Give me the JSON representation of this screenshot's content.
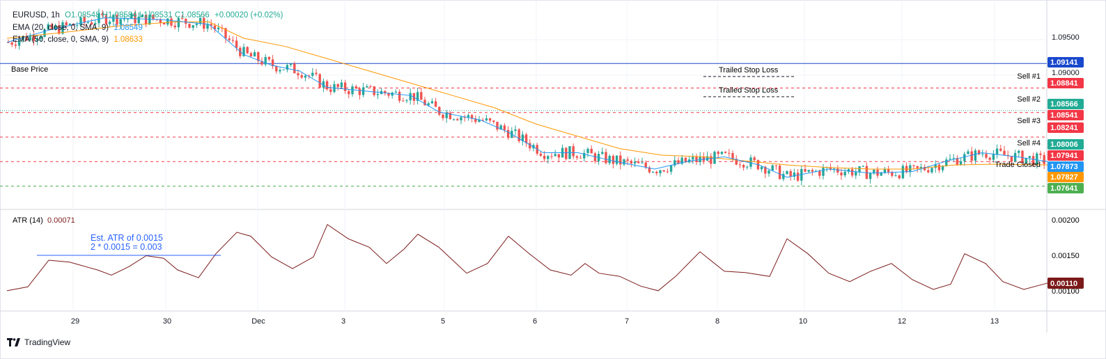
{
  "legend": {
    "symbol": "EURUSD, 1h",
    "ohlc": "O1.08548 H1.08584 L1.08531 C1.08566",
    "change": "+0.00020 (+0.02%)",
    "ema20_label": "EMA (20, close, 0, SMA, 9)",
    "ema20_value": "1.08549",
    "ema50_label": "EMA (50, close, 0, SMA, 9)",
    "ema50_value": "1.08633"
  },
  "colors": {
    "up": "#26a69a",
    "down": "#ef5350",
    "ema20": "#2196f3",
    "ema50": "#ff9800",
    "base": "#1848cc",
    "atr": "#7b1a1a",
    "green_dash": "#4caf50"
  },
  "annotations": {
    "base_price": "Base Price",
    "trailed1": "Trailed Stop Loss",
    "trailed2": "Trailed Stop Loss",
    "sell1": "Sell #1",
    "sell2": "Sell #2",
    "sell3": "Sell #3",
    "sell4": "Sell #4",
    "trade_closed": "Trade Closed",
    "atr_note1": "Est. ATR of 0.0015",
    "atr_note2": "2 * 0.0015 = 0.003"
  },
  "price_axis": {
    "ticks": [
      "1.09500",
      "1.09000"
    ],
    "badges": [
      {
        "text": "1.09141",
        "color": "#1848cc"
      },
      {
        "text": "1.08841",
        "color": "#f23645"
      },
      {
        "text": "1.08566",
        "color": "#22ab94"
      },
      {
        "text": "1.08541",
        "color": "#f23645"
      },
      {
        "text": "1.08241",
        "color": "#f23645"
      },
      {
        "text": "1.08006",
        "color": "#22ab94"
      },
      {
        "text": "1.07941",
        "color": "#f23645"
      },
      {
        "text": "1.07873",
        "color": "#2196f3"
      },
      {
        "text": "1.07827",
        "color": "#ff9800"
      },
      {
        "text": "1.07641",
        "color": "#4caf50"
      }
    ]
  },
  "atr_pane": {
    "label": "ATR (14)",
    "value": "0.00071",
    "ticks": [
      "0.00200",
      "0.00150",
      "0.00100"
    ],
    "badge": "0.00110"
  },
  "time_axis": [
    "29",
    "30",
    "Dec",
    "3",
    "5",
    "6",
    "7",
    "8",
    "10",
    "12",
    "13"
  ],
  "watermark": "TradingView",
  "chart_data": {
    "type": "line",
    "series": [
      {
        "name": "EMA (20, close, 0, SMA, 9)",
        "points": [
          [
            0,
            1.094
          ],
          [
            60,
            1.0955
          ],
          [
            140,
            1.097
          ],
          [
            220,
            1.0968
          ],
          [
            290,
            1.0962
          ],
          [
            340,
            1.0925
          ],
          [
            380,
            1.0912
          ],
          [
            420,
            1.0905
          ],
          [
            460,
            1.0885
          ],
          [
            520,
            1.088
          ],
          [
            580,
            1.0875
          ],
          [
            620,
            1.0855
          ],
          [
            680,
            1.0845
          ],
          [
            720,
            1.083
          ],
          [
            770,
            1.0805
          ],
          [
            820,
            1.0805
          ],
          [
            870,
            1.0795
          ],
          [
            930,
            1.0785
          ],
          [
            980,
            1.0795
          ],
          [
            1030,
            1.08
          ],
          [
            1080,
            1.079
          ],
          [
            1120,
            1.0775
          ],
          [
            1180,
            1.0785
          ],
          [
            1240,
            1.078
          ],
          [
            1300,
            1.0782
          ],
          [
            1350,
            1.0795
          ],
          [
            1400,
            1.0805
          ],
          [
            1450,
            1.08
          ],
          [
            1495,
            1.0794
          ]
        ]
      },
      {
        "name": "EMA (50, close, 0, SMA, 9)",
        "points": [
          [
            0,
            1.0945
          ],
          [
            80,
            1.0952
          ],
          [
            160,
            1.096
          ],
          [
            240,
            1.0965
          ],
          [
            290,
            1.0965
          ],
          [
            340,
            1.0945
          ],
          [
            400,
            1.0935
          ],
          [
            460,
            1.092
          ],
          [
            520,
            1.0905
          ],
          [
            580,
            1.089
          ],
          [
            640,
            1.0875
          ],
          [
            700,
            1.086
          ],
          [
            760,
            1.084
          ],
          [
            820,
            1.0825
          ],
          [
            880,
            1.081
          ],
          [
            940,
            1.0802
          ],
          [
            1000,
            1.08
          ],
          [
            1060,
            1.0795
          ],
          [
            1120,
            1.079
          ],
          [
            1180,
            1.0787
          ],
          [
            1240,
            1.0785
          ],
          [
            1300,
            1.0785
          ],
          [
            1360,
            1.079
          ],
          [
            1420,
            1.0791
          ],
          [
            1495,
            1.079
          ]
        ]
      }
    ],
    "ylim": [
      1.0745,
      1.0985
    ],
    "atr": {
      "name": "ATR (14)",
      "points": [
        [
          0,
          0.00098
        ],
        [
          30,
          0.00104
        ],
        [
          60,
          0.00145
        ],
        [
          90,
          0.00142
        ],
        [
          130,
          0.0013
        ],
        [
          150,
          0.00122
        ],
        [
          175,
          0.00135
        ],
        [
          200,
          0.00152
        ],
        [
          225,
          0.00148
        ],
        [
          245,
          0.0013
        ],
        [
          275,
          0.00118
        ],
        [
          300,
          0.00155
        ],
        [
          330,
          0.00188
        ],
        [
          350,
          0.00182
        ],
        [
          380,
          0.0015
        ],
        [
          410,
          0.00132
        ],
        [
          440,
          0.0015
        ],
        [
          460,
          0.002
        ],
        [
          490,
          0.00178
        ],
        [
          520,
          0.00165
        ],
        [
          545,
          0.0014
        ],
        [
          570,
          0.00162
        ],
        [
          590,
          0.00185
        ],
        [
          620,
          0.00165
        ],
        [
          660,
          0.00125
        ],
        [
          690,
          0.0014
        ],
        [
          720,
          0.00182
        ],
        [
          750,
          0.00155
        ],
        [
          780,
          0.0013
        ],
        [
          810,
          0.00122
        ],
        [
          830,
          0.0014
        ],
        [
          850,
          0.00125
        ],
        [
          880,
          0.0012
        ],
        [
          910,
          0.00105
        ],
        [
          935,
          0.00098
        ],
        [
          960,
          0.0012
        ],
        [
          995,
          0.00158
        ],
        [
          1030,
          0.00128
        ],
        [
          1060,
          0.00126
        ],
        [
          1095,
          0.0012
        ],
        [
          1120,
          0.00178
        ],
        [
          1150,
          0.00155
        ],
        [
          1180,
          0.00125
        ],
        [
          1210,
          0.00112
        ],
        [
          1240,
          0.00128
        ],
        [
          1270,
          0.0014
        ],
        [
          1300,
          0.00115
        ],
        [
          1330,
          0.001
        ],
        [
          1355,
          0.00108
        ],
        [
          1375,
          0.00155
        ],
        [
          1405,
          0.0014
        ],
        [
          1430,
          0.00112
        ],
        [
          1460,
          0.001
        ],
        [
          1495,
          0.0011
        ]
      ]
    },
    "atr_ylim": [
      0.00085,
      0.00205
    ],
    "levels": [
      {
        "name": "Base Price",
        "value": 1.09141
      },
      {
        "name": "Sell #1",
        "value": 1.08841
      },
      {
        "name": "Sell #2",
        "value": 1.08541
      },
      {
        "name": "Sell #3",
        "value": 1.08241
      },
      {
        "name": "Sell #4",
        "value": 1.07941
      },
      {
        "name": "Trade Closed",
        "value": 1.07641
      }
    ]
  }
}
